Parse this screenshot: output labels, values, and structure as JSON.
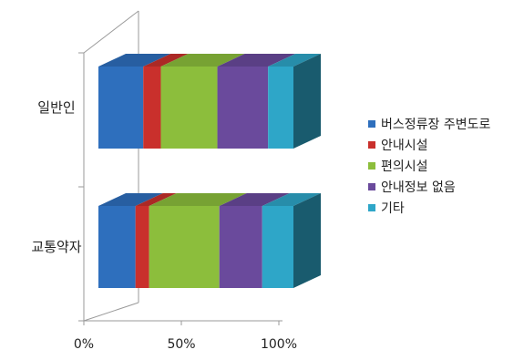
{
  "chart_data": {
    "type": "bar",
    "orientation": "horizontal",
    "stacked": "percent",
    "style": "3d",
    "categories": [
      "일반인",
      "교통약자"
    ],
    "series": [
      {
        "name": "버스정류장 주변도로",
        "color": "#2e6fbd",
        "values": [
          23,
          19
        ]
      },
      {
        "name": "안내시설",
        "color": "#c9302c",
        "values": [
          9,
          7
        ]
      },
      {
        "name": "편의시설",
        "color": "#8cbe3c",
        "values": [
          29,
          36
        ]
      },
      {
        "name": "안내정보 없음",
        "color": "#6a4a9c",
        "values": [
          26,
          22
        ]
      },
      {
        "name": "기타",
        "color": "#2ea6c8",
        "values": [
          13,
          16
        ]
      }
    ],
    "x_ticks": [
      "0%",
      "50%",
      "100%"
    ],
    "xlim": [
      0,
      100
    ],
    "legend_position": "right",
    "grid": false,
    "title": "",
    "xlabel": "",
    "ylabel": ""
  }
}
